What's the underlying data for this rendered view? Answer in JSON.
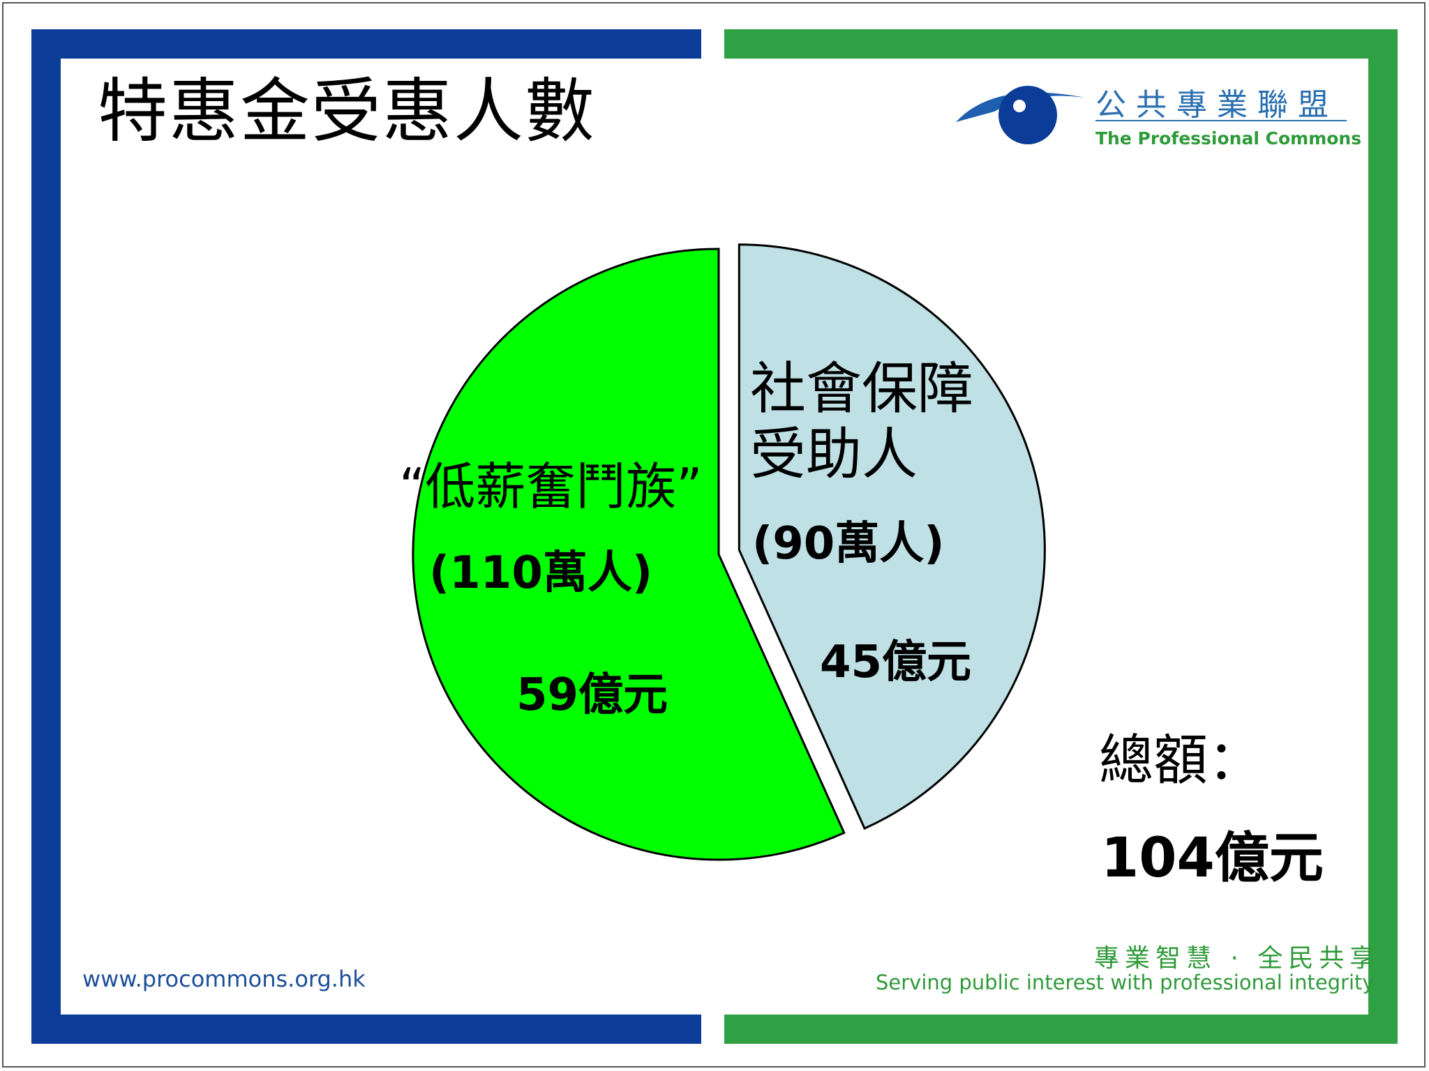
{
  "slide": {
    "title": "特惠金受惠人數",
    "logo": {
      "cn": "公共專業聯盟",
      "en": "The Professional Commons"
    },
    "total_label": "總額：",
    "total_value": "104億元",
    "slogan_cn": "專業智慧 · 全民共享",
    "slogan_en": "Serving public interest with professional integrity",
    "url": "www.procommons.org.hk"
  },
  "colors": {
    "blue": "#0b3c98",
    "green": "#2fa043",
    "slice1": "#00ff00",
    "slice2": "#bfe0e4",
    "logo_blue": "#2a6fb0"
  },
  "chart_data": {
    "type": "pie",
    "slices": [
      {
        "label": "“低薪奮鬥族”",
        "people": "(110萬人)",
        "amount": "59億元",
        "value": 59,
        "color": "#00ff00"
      },
      {
        "label_lines": [
          "社會保障",
          "受助人"
        ],
        "people": "(90萬人)",
        "amount": "45億元",
        "value": 45,
        "color": "#bfe0e4",
        "exploded": true
      }
    ]
  }
}
